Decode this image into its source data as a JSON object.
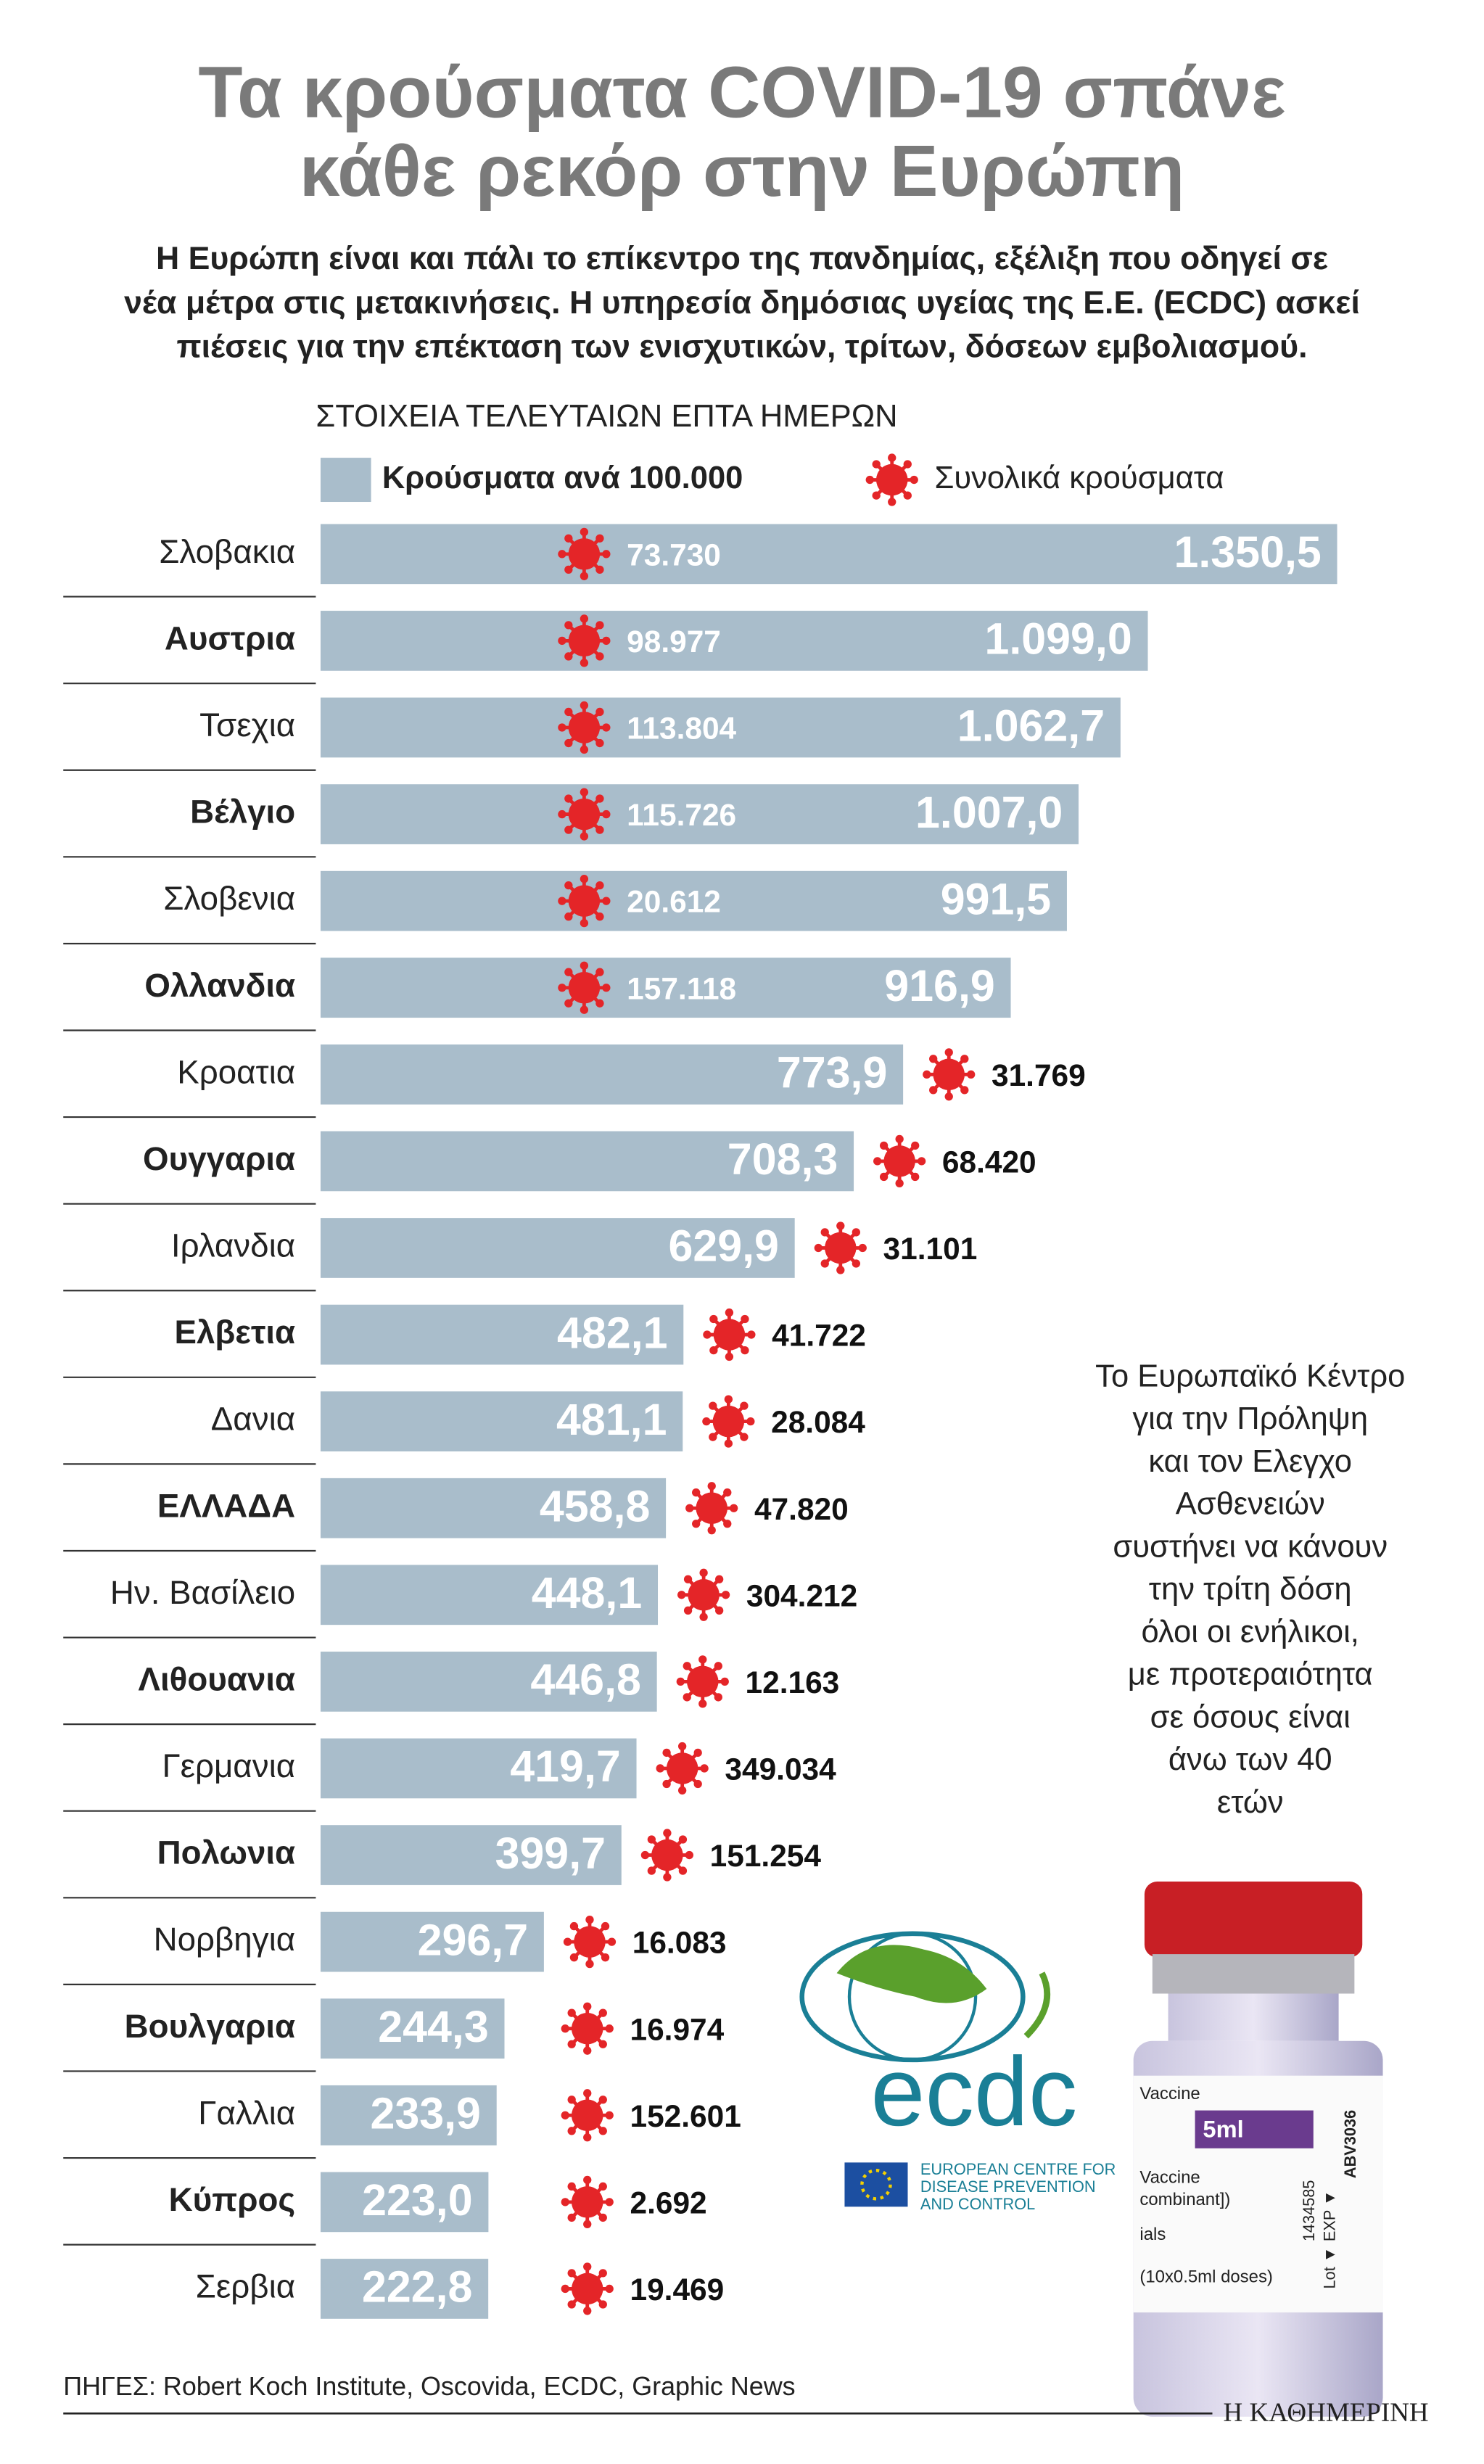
{
  "chart_data": {
    "type": "bar",
    "orientation": "horizontal",
    "title_lines": [
      "Τα κρούσματα COVID-19 σπάνε",
      "κάθε ρεκόρ στην Ευρώπη"
    ],
    "subtitle_lines": [
      "Η Ευρώπη είναι και πάλι το επίκεντρο της πανδημίας, εξέλιξη που οδηγεί σε",
      "νέα μέτρα στις μετακινήσεις. Η υπηρεσία δημόσιας υγείας της Ε.Ε. (ECDC) ασκεί",
      "πιέσεις για την επέκταση των ενισχυτικών, τρίτων, δόσεων εμβολιασμού."
    ],
    "period_label": "ΣΤΟΙΧΕΙΑ ΤΕΛΕΥΤΑΙΩΝ ΕΠΤΑ ΗΜΕΡΩΝ",
    "categories": [
      "Σλοβακια",
      "Αυστρια",
      "Τσεχια",
      "Βέλγιο",
      "Σλοβενια",
      "Ολλανδια",
      "Κροατια",
      "Ουγγαρια",
      "Ιρλανδια",
      "Ελβετια",
      "Δανια",
      "ΕΛΛΑΔΑ",
      "Ην. Βασίλειο",
      "Λιθουανια",
      "Γερμανια",
      "Πολωνια",
      "Νορβηγια",
      "Βουλγαρια",
      "Γαλλια",
      "Κύπρος",
      "Σερβια"
    ],
    "series": [
      {
        "name": "Κρούσματα ανά 100.000",
        "color": "#a9bdcb",
        "values": [
          1350.5,
          1099.0,
          1062.7,
          1007.0,
          991.5,
          916.9,
          773.9,
          708.3,
          629.9,
          482.1,
          481.1,
          458.8,
          448.1,
          446.8,
          419.7,
          399.7,
          296.7,
          244.3,
          233.9,
          223.0,
          222.8
        ],
        "value_labels": [
          "1.350,5",
          "1.099,0",
          "1.062,7",
          "1.007,0",
          "991,5",
          "916,9",
          "773,9",
          "708,3",
          "629,9",
          "482,1",
          "481,1",
          "458,8",
          "448,1",
          "446,8",
          "419,7",
          "399,7",
          "296,7",
          "244,3",
          "233,9",
          "223,0",
          "222,8"
        ]
      },
      {
        "name": "Συνολικά κρούσματα",
        "color": "#e42528",
        "values": [
          73730,
          98977,
          113804,
          115726,
          20612,
          157118,
          31769,
          68420,
          31101,
          41722,
          28084,
          47820,
          304212,
          12163,
          349034,
          151254,
          16083,
          16974,
          152601,
          2692,
          19469
        ],
        "value_labels": [
          "73.730",
          "98.977",
          "113.804",
          "115.726",
          "20.612",
          "157.118",
          "31.769",
          "68.420",
          "31.101",
          "41.722",
          "28.084",
          "47.820",
          "304.212",
          "12.163",
          "349.034",
          "151.254",
          "16.083",
          "16.974",
          "152.601",
          "2.692",
          "19.469"
        ]
      }
    ]
  },
  "note_lines": [
    "Το Ευρωπαϊκό Κέντρο",
    "για την Πρόληψη",
    "και τον Ελεγχο",
    "Ασθενειών",
    "συστήνει να κάνουν",
    "την τρίτη δόση",
    "όλοι οι ενήλικοι,",
    "με προτεραιότητα",
    "σε όσους είναι",
    "άνω των 40",
    "ετών"
  ],
  "logo": {
    "name": "ecdc",
    "lines": [
      "EUROPEAN CENTRE FOR",
      "DISEASE PREVENTION",
      "AND CONTROL"
    ]
  },
  "vial": {
    "texts": [
      "Vaccine",
      "5ml",
      "Vaccine",
      "combinant])",
      "ials",
      "(10x0.5ml doses)"
    ],
    "vertical": [
      "1434585",
      "EXP ▼",
      "Lot ▼",
      "ABV3036"
    ]
  },
  "source": "ΠΗΓΕΣ: Robert Koch Institute, Oscovida, ECDC, Graphic News",
  "publisher": "Η ΚΑΘΗΜΕΡΙΝΗ"
}
